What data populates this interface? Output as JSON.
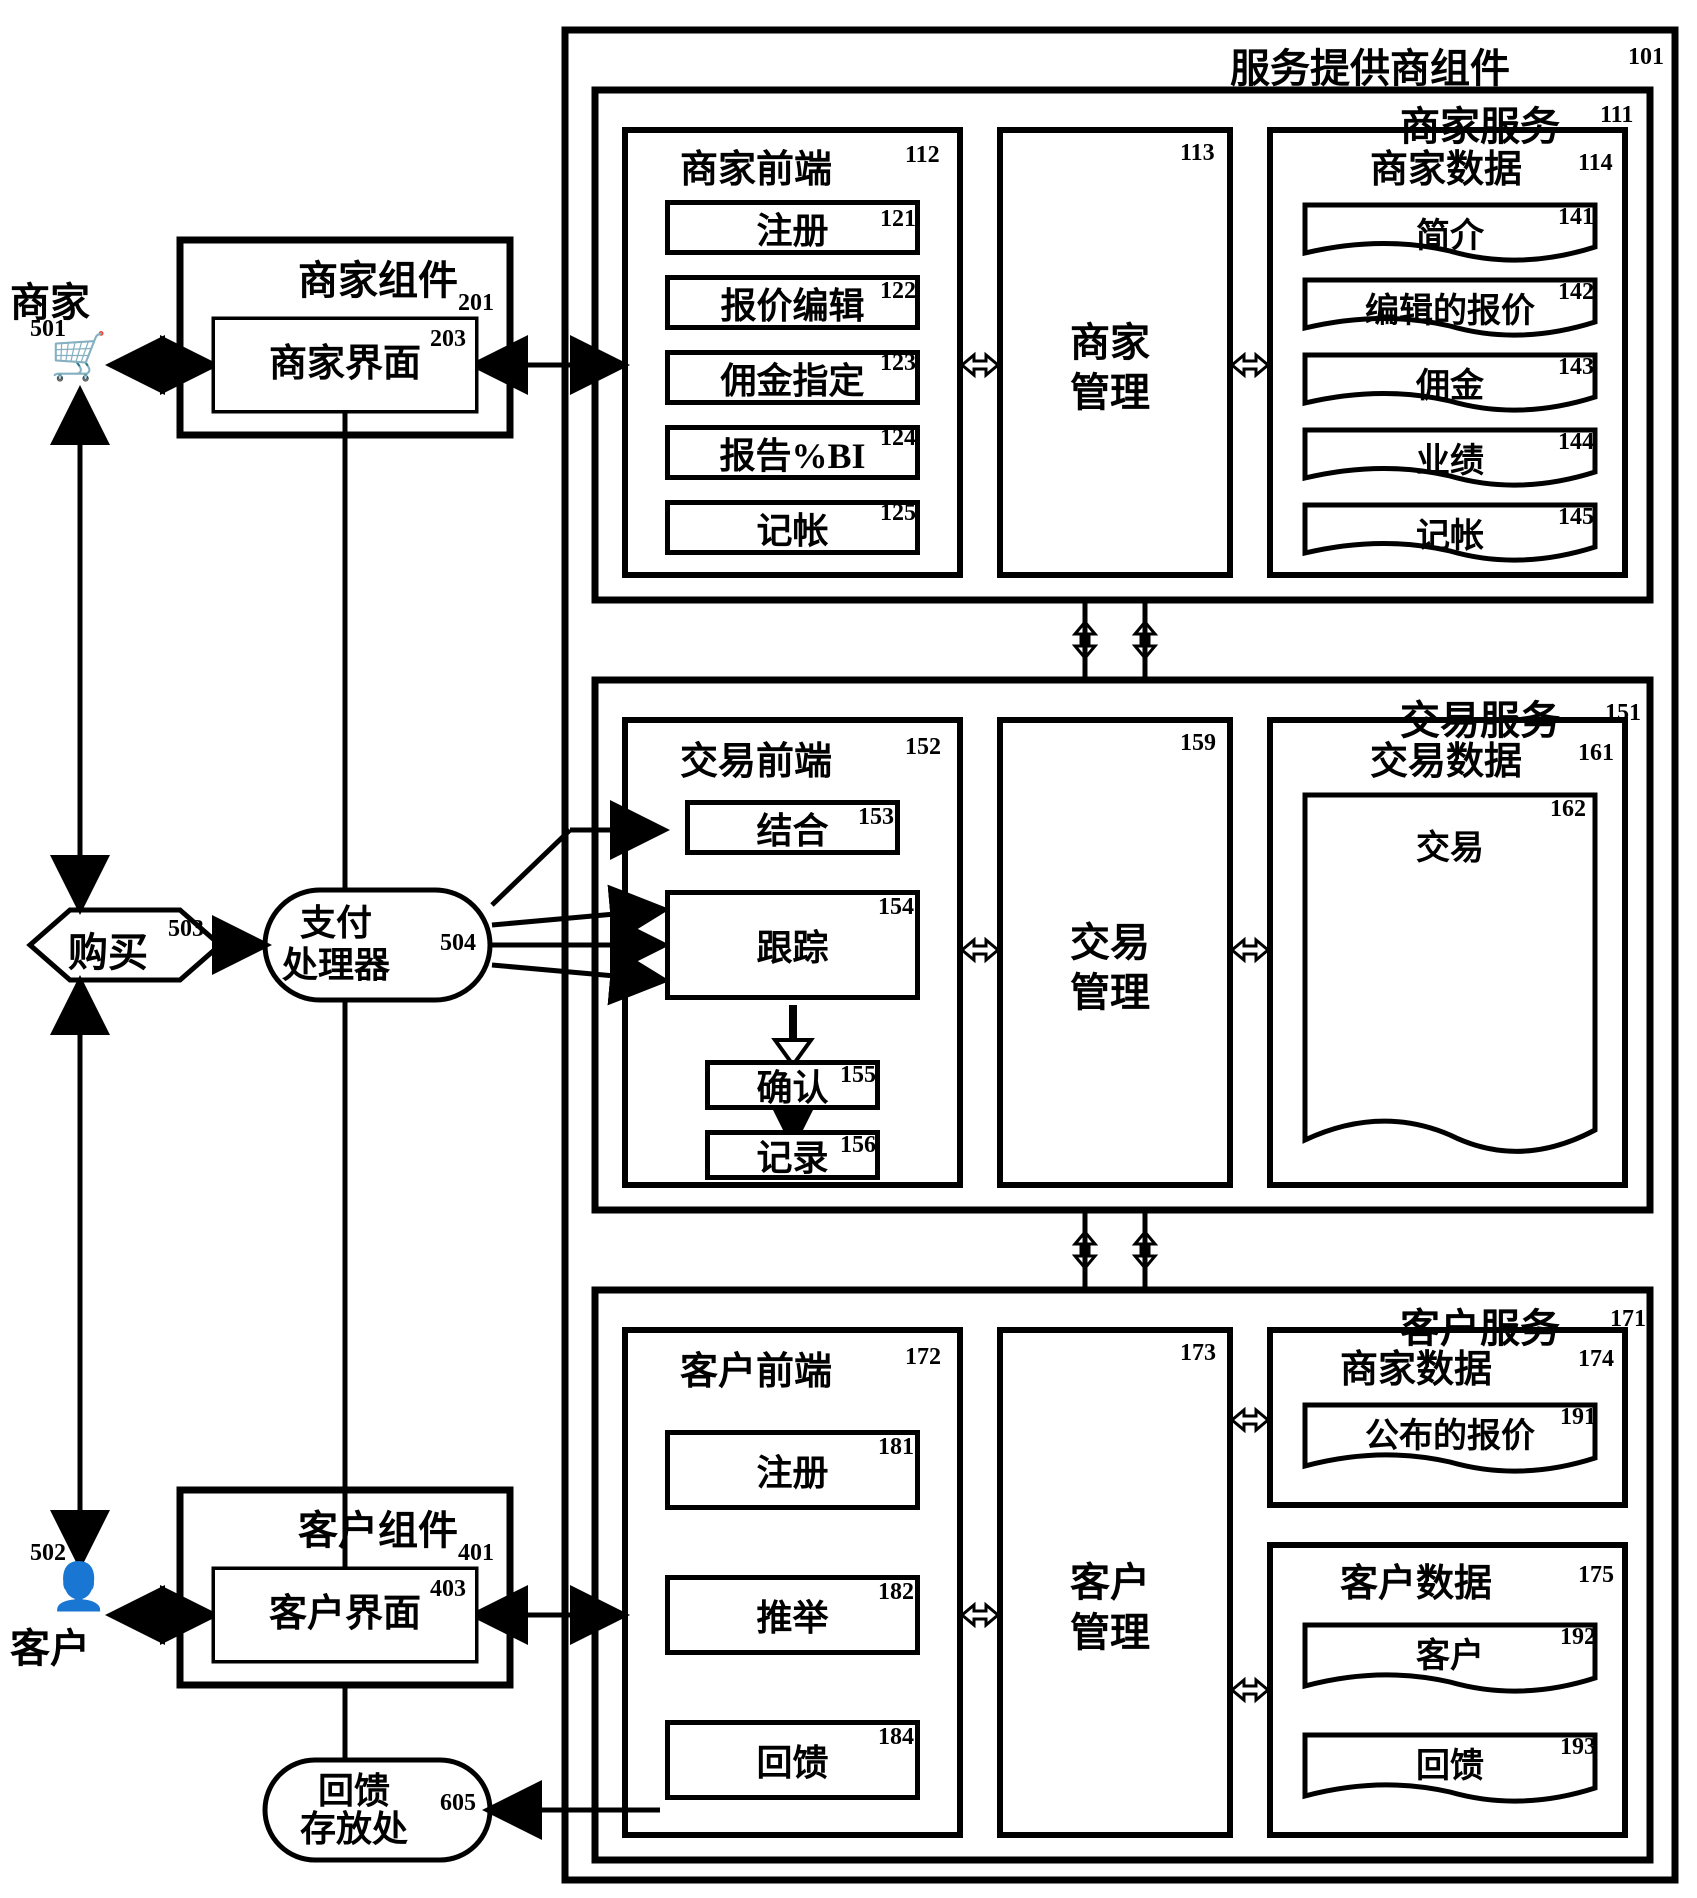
{
  "colors": {
    "stroke": "#000000",
    "bg": "#ffffff"
  },
  "actors": {
    "merchant": {
      "label": "商家",
      "ref": "501"
    },
    "customer": {
      "label": "客户",
      "ref": "502"
    }
  },
  "left": {
    "merchant_component": {
      "label": "商家组件",
      "ref": "201"
    },
    "merchant_interface": {
      "label": "商家界面",
      "ref": "203"
    },
    "customer_component": {
      "label": "客户组件",
      "ref": "401"
    },
    "customer_interface": {
      "label": "客户界面",
      "ref": "403"
    },
    "purchase": {
      "label": "购买",
      "ref": "503"
    },
    "payment_processor": {
      "label_l1": "支付",
      "label_l2": "处理器",
      "ref": "504"
    },
    "feedback_store": {
      "label_l1": "回馈",
      "label_l2": "存放处",
      "ref": "605"
    }
  },
  "provider": {
    "title": "服务提供商组件",
    "ref": "101",
    "merchant_service": {
      "title": "商家服务",
      "ref": "111",
      "frontend": {
        "title": "商家前端",
        "ref": "112",
        "items": [
          {
            "label": "注册",
            "ref": "121"
          },
          {
            "label": "报价编辑",
            "ref": "122"
          },
          {
            "label": "佣金指定",
            "ref": "123"
          },
          {
            "label": "报告%BI",
            "ref": "124"
          },
          {
            "label": "记帐",
            "ref": "125"
          }
        ]
      },
      "management": {
        "label_l1": "商家",
        "label_l2": "管理",
        "ref": "113"
      },
      "data": {
        "title": "商家数据",
        "ref": "114",
        "items": [
          {
            "label": "简介",
            "ref": "141"
          },
          {
            "label": "编辑的报价",
            "ref": "142"
          },
          {
            "label": "佣金",
            "ref": "143"
          },
          {
            "label": "业绩",
            "ref": "144"
          },
          {
            "label": "记帐",
            "ref": "145"
          }
        ]
      }
    },
    "transaction_service": {
      "title": "交易服务",
      "ref": "151",
      "frontend": {
        "title": "交易前端",
        "ref": "152",
        "items": [
          {
            "label": "结合",
            "ref": "153"
          },
          {
            "label": "跟踪",
            "ref": "154"
          },
          {
            "label": "确认",
            "ref": "155"
          },
          {
            "label": "记录",
            "ref": "156"
          }
        ]
      },
      "management": {
        "label_l1": "交易",
        "label_l2": "管理",
        "ref": "159"
      },
      "data": {
        "title": "交易数据",
        "ref": "161",
        "items": [
          {
            "label": "交易",
            "ref": "162"
          }
        ]
      }
    },
    "customer_service": {
      "title": "客户服务",
      "ref": "171",
      "frontend": {
        "title": "客户前端",
        "ref": "172",
        "items": [
          {
            "label": "注册",
            "ref": "181"
          },
          {
            "label": "推举",
            "ref": "182"
          },
          {
            "label": "回馈",
            "ref": "184"
          }
        ]
      },
      "management": {
        "label_l1": "客户",
        "label_l2": "管理",
        "ref": "173"
      },
      "merchant_data": {
        "title": "商家数据",
        "ref": "174",
        "items": [
          {
            "label": "公布的报价",
            "ref": "191"
          }
        ]
      },
      "customer_data": {
        "title": "客户数据",
        "ref": "175",
        "items": [
          {
            "label": "客户",
            "ref": "192"
          },
          {
            "label": "回馈",
            "ref": "193"
          }
        ]
      }
    }
  }
}
